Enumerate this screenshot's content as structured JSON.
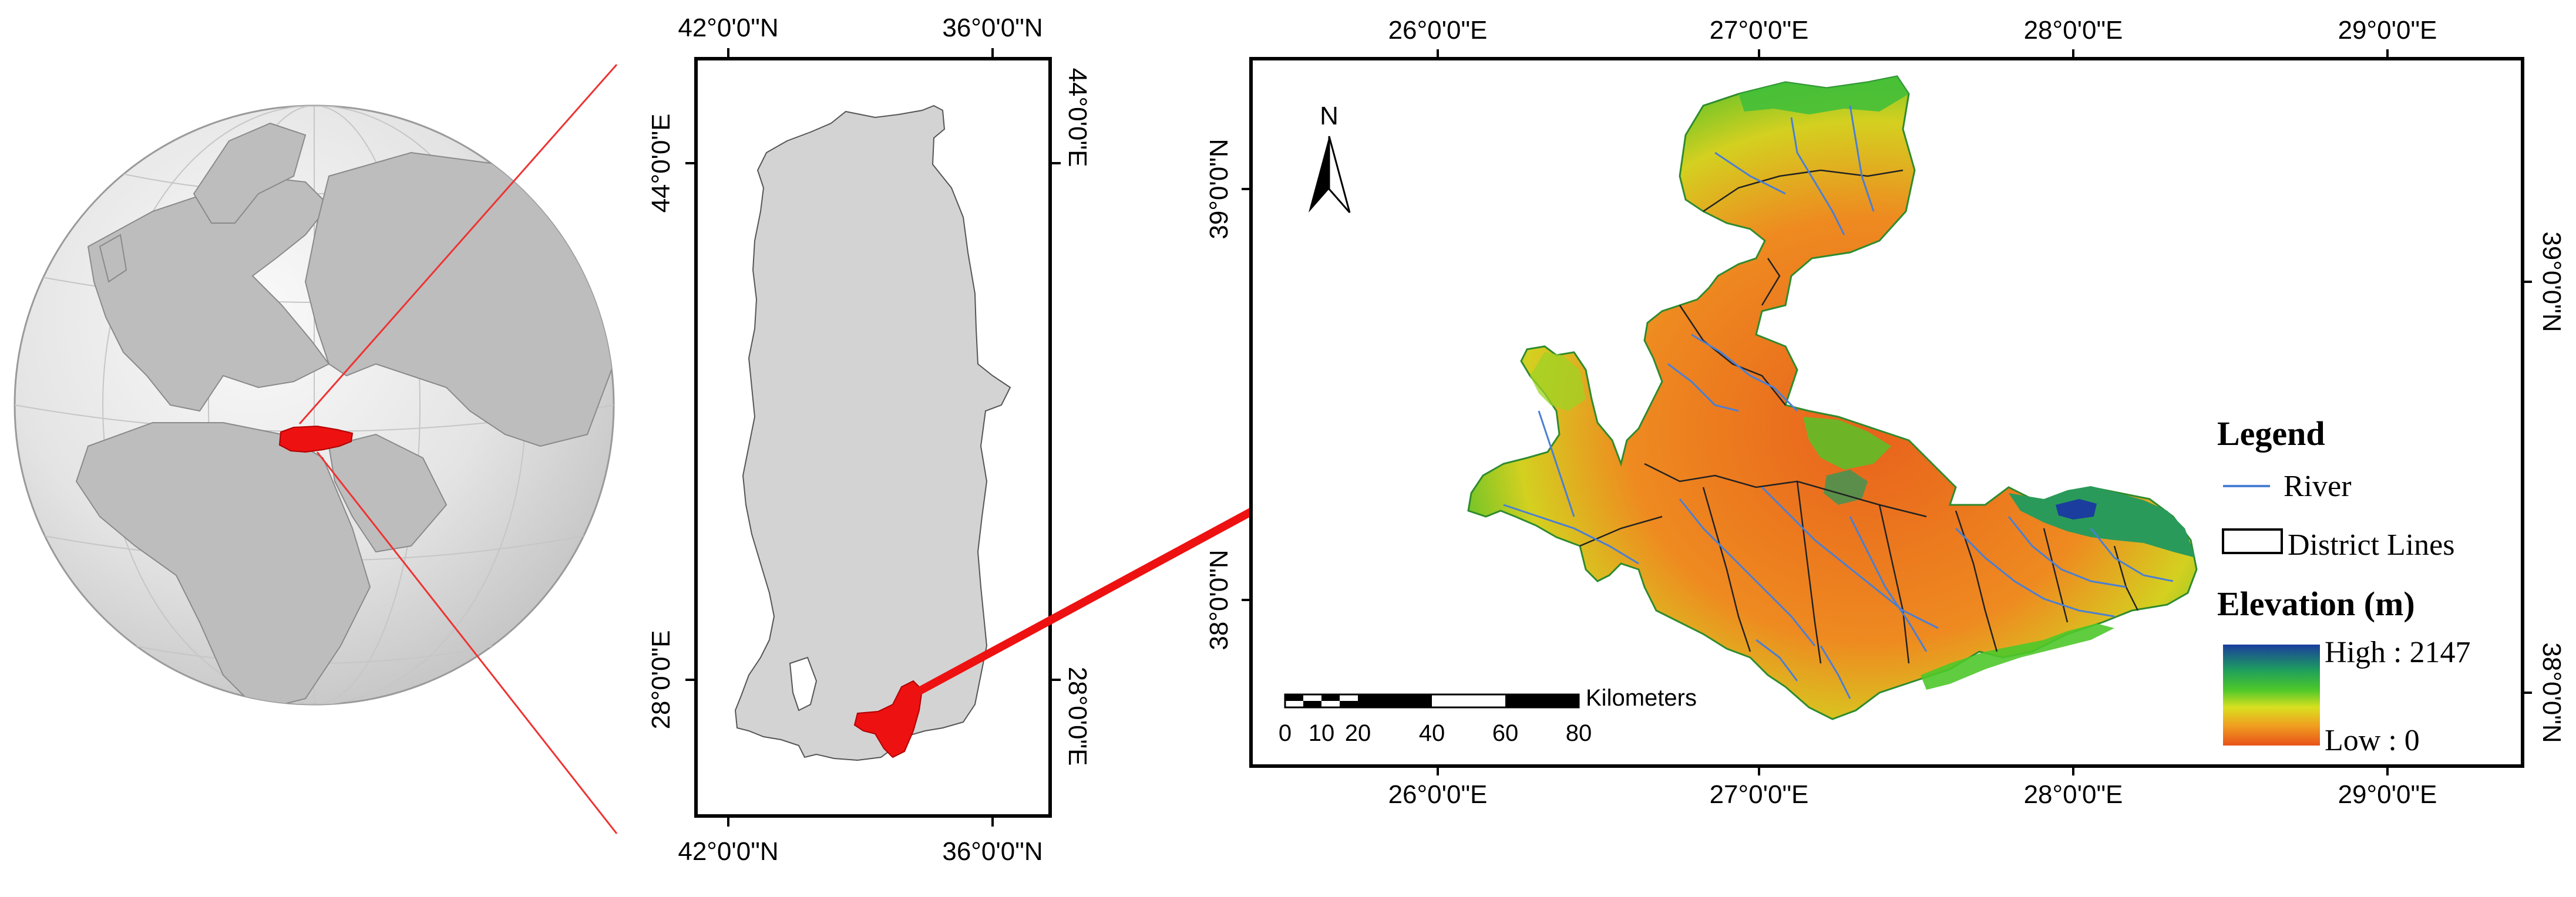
{
  "panel2": {
    "top_labels": [
      "42°0'0\"N",
      "36°0'0\"N"
    ],
    "bottom_labels": [
      "42°0'0\"N",
      "36°0'0\"N"
    ],
    "left_labels": [
      "44°0'0\"E",
      "28°0'0\"E"
    ],
    "right_labels": [
      "44°0'0\"E",
      "28°0'0\"E"
    ]
  },
  "panel3": {
    "top_labels": [
      "26°0'0\"E",
      "27°0'0\"E",
      "28°0'0\"E",
      "29°0'0\"E"
    ],
    "bottom_labels": [
      "26°0'0\"E",
      "27°0'0\"E",
      "28°0'0\"E",
      "29°0'0\"E"
    ],
    "left_labels": [
      "39°0'0\"N",
      "38°0'0\"N"
    ],
    "right_labels": [
      "39°0'0\"N",
      "38°0'0\"N"
    ],
    "north_label": "N",
    "scale": {
      "unit": "Kilometers",
      "ticks": [
        "0",
        "10",
        "20",
        "40",
        "60",
        "80"
      ]
    },
    "legend": {
      "title": "Legend",
      "river_label": "River",
      "district_label": "District Lines",
      "elevation_title": "Elevation (m)",
      "high_label": "High : 2147",
      "low_label": "Low : 0"
    }
  },
  "colors": {
    "highlight": "#ee1111",
    "river": "#4a7fd4",
    "land_gray": "#d3d3d3",
    "ramp": [
      "#1a3d9e",
      "#1e9e5e",
      "#4ec82a",
      "#c8e01e",
      "#f0a020",
      "#e8521a"
    ]
  }
}
